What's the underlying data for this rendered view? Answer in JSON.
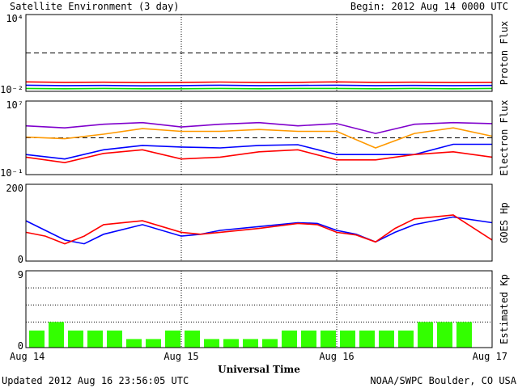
{
  "header": {
    "title": "Satellite Environment (3 day)",
    "begin": "Begin:  2012 Aug 14 0000 UTC"
  },
  "footer": {
    "updated": "Updated 2012 Aug 16 23:56:05 UTC",
    "credit": "NOAA/SWPC Boulder, CO USA"
  },
  "chart_data": [
    {
      "type": "line",
      "ylabel": "Proton Flux",
      "yscale": "log",
      "ylim": [
        0.01,
        10000
      ],
      "ytick_labels": [
        "10⁴",
        "10⁻²"
      ],
      "threshold": 10,
      "x": [
        0,
        0.25,
        0.5,
        0.75,
        1,
        1.25,
        1.5,
        1.75,
        2,
        2.25,
        2.5,
        2.75,
        3
      ],
      "series": [
        {
          "color": "#ff0000",
          "values": [
            0.055,
            0.05,
            0.052,
            0.048,
            0.05,
            0.053,
            0.049,
            0.05,
            0.055,
            0.05,
            0.052,
            0.049,
            0.05
          ]
        },
        {
          "color": "#0000ff",
          "values": [
            0.03,
            0.028,
            0.029,
            0.027,
            0.028,
            0.03,
            0.028,
            0.029,
            0.03,
            0.028,
            0.029,
            0.028,
            0.029
          ]
        },
        {
          "color": "#00dd00",
          "values": [
            0.017,
            0.016,
            0.017,
            0.016,
            0.016,
            0.017,
            0.016,
            0.017,
            0.017,
            0.016,
            0.017,
            0.016,
            0.017
          ]
        }
      ]
    },
    {
      "type": "line",
      "ylabel": "Electron Flux",
      "yscale": "log",
      "ylim": [
        0.1,
        10000000
      ],
      "ytick_labels": [
        "10⁷",
        "10⁻¹"
      ],
      "threshold": 1000,
      "x": [
        0,
        0.25,
        0.5,
        0.75,
        1,
        1.25,
        1.5,
        1.75,
        2,
        2.25,
        2.5,
        2.75,
        3
      ],
      "series": [
        {
          "color": "#7f00cc",
          "values": [
            20000,
            12000,
            30000,
            45000,
            15000,
            30000,
            45000,
            20000,
            35000,
            3000,
            30000,
            45000,
            35000
          ]
        },
        {
          "color": "#ff9900",
          "values": [
            1200,
            800,
            2500,
            10000,
            5000,
            5000,
            8000,
            5000,
            5000,
            80,
            3000,
            12000,
            1500
          ]
        },
        {
          "color": "#0000ff",
          "values": [
            15,
            5,
            50,
            150,
            100,
            80,
            150,
            180,
            15,
            15,
            15,
            200,
            200
          ]
        },
        {
          "color": "#ff0000",
          "values": [
            8,
            2,
            20,
            50,
            5,
            8,
            30,
            50,
            4,
            4,
            15,
            30,
            8
          ]
        }
      ]
    },
    {
      "type": "line",
      "ylabel": "GOES Hp",
      "ylim": [
        0,
        200
      ],
      "ytick_labels": [
        "200",
        "0"
      ],
      "x": [
        0,
        0.125,
        0.25,
        0.375,
        0.5,
        0.75,
        1,
        1.125,
        1.25,
        1.5,
        1.75,
        1.875,
        2,
        2.125,
        2.25,
        2.375,
        2.5,
        2.75,
        3
      ],
      "series": [
        {
          "color": "#0000ff",
          "values": [
            105,
            80,
            55,
            45,
            70,
            95,
            65,
            70,
            80,
            90,
            100,
            98,
            80,
            70,
            50,
            75,
            95,
            115,
            100
          ]
        },
        {
          "color": "#ff0000",
          "values": [
            75,
            65,
            45,
            65,
            95,
            105,
            75,
            70,
            75,
            85,
            98,
            95,
            75,
            68,
            50,
            85,
            110,
            120,
            55
          ]
        }
      ]
    },
    {
      "type": "bar",
      "ylabel": "Estimated Kp",
      "ylim": [
        0,
        9
      ],
      "ytick_labels": [
        "9",
        "0"
      ],
      "color": "#33ff00",
      "values": [
        2,
        3,
        2,
        2,
        2,
        1,
        1,
        2,
        2,
        1,
        1,
        1,
        1,
        2,
        2,
        2,
        2,
        2,
        2,
        2,
        3,
        3,
        3
      ]
    }
  ],
  "xaxis": {
    "title": "Universal Time",
    "ticks": [
      "Aug 14",
      "Aug 15",
      "Aug 16",
      "Aug 17"
    ]
  }
}
